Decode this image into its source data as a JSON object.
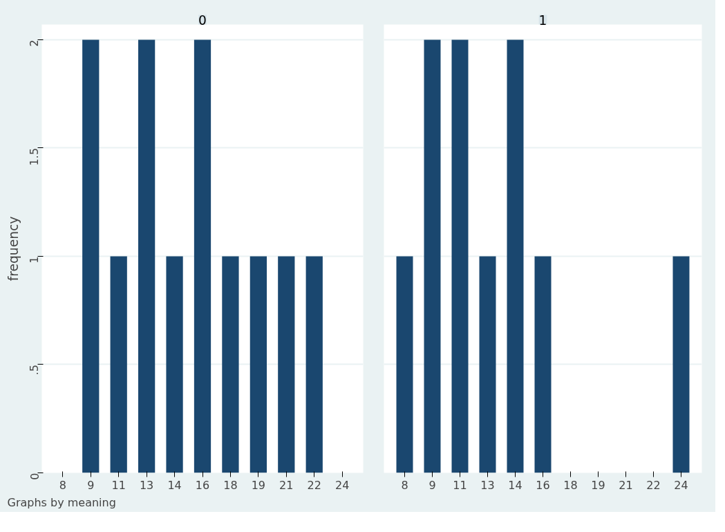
{
  "chart_data": [
    {
      "type": "bar",
      "title": "0",
      "ylabel": "frequency",
      "categories": [
        "8",
        "9",
        "11",
        "13",
        "14",
        "16",
        "18",
        "19",
        "21",
        "22",
        "24"
      ],
      "series": [
        {
          "color": "#1a476f",
          "values": [
            0,
            2,
            1,
            2,
            1,
            2,
            1,
            1,
            1,
            1,
            0
          ]
        }
      ],
      "ylim": [
        0,
        2.07
      ],
      "yticks": [
        0,
        {
          "value": 0.5,
          "label": ".5"
        },
        1,
        1.5,
        2
      ],
      "grid": "y",
      "annotations": [
        "Graphs by meaning"
      ]
    },
    {
      "type": "bar",
      "title": "1",
      "categories": [
        "8",
        "9",
        "11",
        "13",
        "14",
        "16",
        "18",
        "19",
        "21",
        "22",
        "24"
      ],
      "series": [
        {
          "color": "#1a476f",
          "values": [
            1,
            2,
            2,
            1,
            2,
            1,
            0,
            0,
            0,
            0,
            1
          ]
        }
      ],
      "ylim": [
        0,
        2.07
      ],
      "yticks": [
        0,
        0.5,
        1,
        1.5,
        2
      ],
      "grid": "y",
      "tick_labels": "x"
    }
  ]
}
